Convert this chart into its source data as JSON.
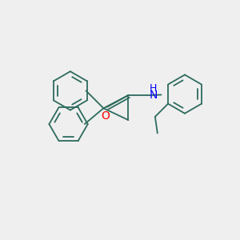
{
  "background_color": "#efefef",
  "bond_color": "#2d6b5e",
  "N_color": "#0000ff",
  "O_color": "#ff0000",
  "line_width": 1.3,
  "font_size_N": 10,
  "font_size_H": 9,
  "font_size_O": 10,
  "xlim": [
    0,
    10
  ],
  "ylim": [
    0,
    10
  ],
  "figsize": [
    3.0,
    3.0
  ],
  "dpi": 100
}
